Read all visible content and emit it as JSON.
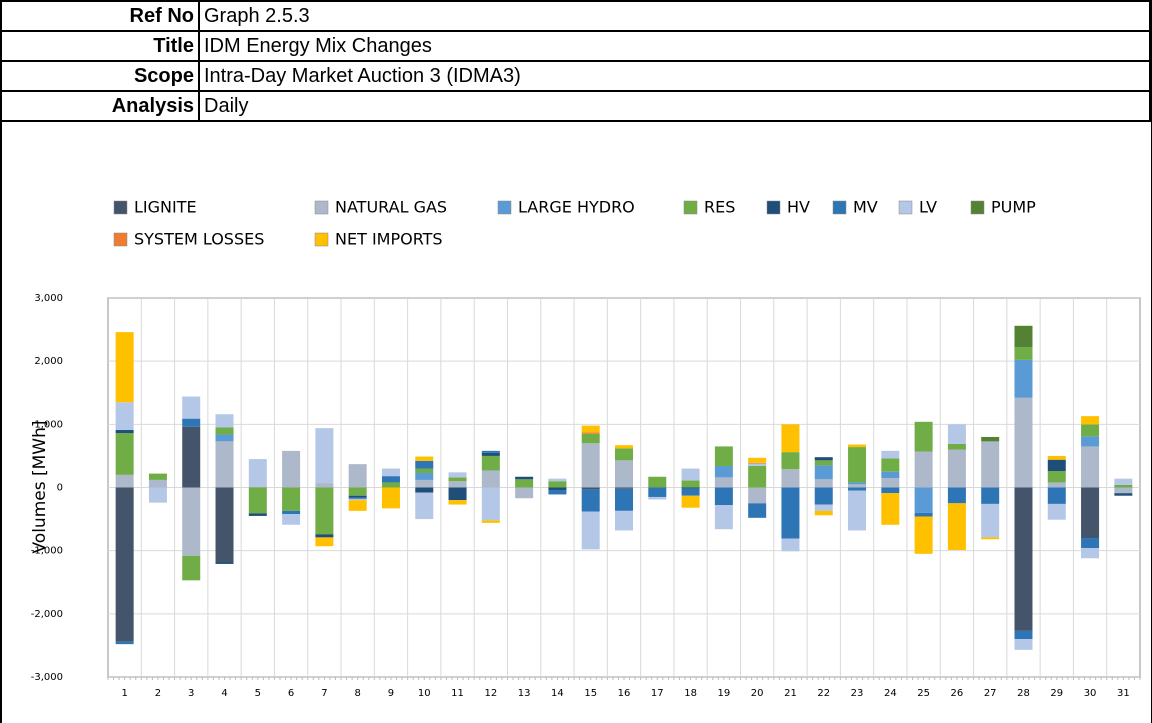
{
  "header": {
    "rows": [
      {
        "label": "Ref No",
        "value": "Graph 2.5.3"
      },
      {
        "label": "Title",
        "value": "IDM Energy Mix Changes"
      },
      {
        "label": "Scope",
        "value": "Intra-Day Market Auction 3 (IDMA3)"
      },
      {
        "label": "Analysis",
        "value": "Daily"
      }
    ]
  },
  "chart_data": {
    "type": "bar",
    "stacked": true,
    "y_label": "Volumes [MWh]",
    "grid": true,
    "categories": [
      "1",
      "2",
      "3",
      "4",
      "5",
      "6",
      "7",
      "8",
      "9",
      "10",
      "11",
      "12",
      "13",
      "14",
      "15",
      "16",
      "17",
      "18",
      "19",
      "20",
      "21",
      "22",
      "23",
      "24",
      "25",
      "26",
      "27",
      "28",
      "29",
      "30",
      "31"
    ],
    "ylim": [
      -3000,
      3000
    ],
    "yticks": [
      {
        "value": -3000,
        "label": "-3,000"
      },
      {
        "value": -2000,
        "label": "-2,000"
      },
      {
        "value": -1000,
        "label": "-1,000"
      },
      0,
      {
        "value": 1000,
        "label": "1,000"
      },
      {
        "value": 2000,
        "label": "2,000"
      },
      {
        "value": 3000,
        "label": "3,000"
      }
    ],
    "series": [
      {
        "name": "LIGNITE",
        "color": "#44546a",
        "values": [
          -2440,
          null,
          960,
          -1180,
          null,
          null,
          null,
          null,
          null,
          null,
          null,
          null,
          null,
          null,
          -30,
          -20,
          null,
          null,
          null,
          null,
          null,
          null,
          null,
          null,
          null,
          null,
          null,
          -2270,
          null,
          -800,
          null
        ]
      },
      {
        "name": "NATURAL GAS",
        "color": "#adb9ca",
        "values": [
          200,
          120,
          -1080,
          730,
          20,
          580,
          70,
          370,
          null,
          120,
          100,
          270,
          -170,
          null,
          700,
          430,
          null,
          null,
          160,
          -250,
          290,
          130,
          50,
          150,
          570,
          600,
          730,
          1420,
          80,
          650,
          -90
        ]
      },
      {
        "name": "LARGE HYDRO",
        "color": "#5b9bd5",
        "values": [
          null,
          null,
          null,
          110,
          null,
          null,
          null,
          null,
          null,
          110,
          null,
          null,
          null,
          null,
          null,
          null,
          null,
          null,
          180,
          null,
          null,
          220,
          30,
          100,
          -400,
          null,
          null,
          600,
          null,
          160,
          null
        ]
      },
      {
        "name": "RES",
        "color": "#70ad47",
        "values": [
          660,
          100,
          -390,
          110,
          -410,
          -370,
          -740,
          -130,
          80,
          70,
          60,
          230,
          130,
          100,
          150,
          190,
          170,
          110,
          310,
          340,
          270,
          80,
          560,
          210,
          470,
          90,
          null,
          200,
          180,
          190,
          40
        ]
      },
      {
        "name": "HV",
        "color": "#1f4e79",
        "values": [
          50,
          null,
          null,
          -30,
          -40,
          null,
          -50,
          -30,
          null,
          -80,
          -200,
          50,
          40,
          -40,
          null,
          null,
          null,
          -20,
          null,
          null,
          null,
          50,
          null,
          null,
          null,
          null,
          null,
          null,
          180,
          null,
          -40
        ]
      },
      {
        "name": "MV",
        "color": "#2e75b6",
        "values": [
          -40,
          null,
          130,
          null,
          null,
          -50,
          null,
          -20,
          100,
          120,
          null,
          30,
          null,
          -70,
          -350,
          -350,
          -150,
          -110,
          -280,
          -230,
          -810,
          -270,
          -50,
          -90,
          -60,
          -250,
          -260,
          -130,
          -260,
          -160,
          null
        ]
      },
      {
        "name": "LV",
        "color": "#b4c7e7",
        "values": [
          440,
          -240,
          350,
          210,
          430,
          -170,
          870,
          -20,
          120,
          -420,
          80,
          -520,
          null,
          40,
          -600,
          -310,
          -40,
          190,
          -380,
          40,
          -200,
          -100,
          -630,
          120,
          null,
          310,
          -530,
          -170,
          -250,
          -160,
          100
        ]
      },
      {
        "name": "PUMP",
        "color": "#548235",
        "values": [
          null,
          null,
          null,
          null,
          null,
          null,
          null,
          null,
          null,
          null,
          null,
          null,
          null,
          null,
          null,
          null,
          null,
          null,
          null,
          null,
          null,
          null,
          null,
          null,
          null,
          null,
          70,
          340,
          null,
          null,
          null
        ]
      },
      {
        "name": "SYSTEM LOSSES",
        "color": "#ed7d31",
        "values": [
          null,
          null,
          null,
          null,
          null,
          null,
          null,
          null,
          null,
          null,
          null,
          null,
          null,
          null,
          20,
          null,
          null,
          null,
          null,
          10,
          null,
          null,
          null,
          null,
          null,
          null,
          null,
          null,
          null,
          null,
          null
        ]
      },
      {
        "name": "NET IMPORTS",
        "color": "#ffc000",
        "values": [
          1110,
          null,
          null,
          null,
          null,
          null,
          -140,
          -170,
          -330,
          70,
          -70,
          -40,
          null,
          null,
          110,
          50,
          null,
          -190,
          null,
          80,
          440,
          -70,
          40,
          -500,
          -590,
          -740,
          -30,
          null,
          60,
          130,
          null
        ]
      }
    ]
  }
}
